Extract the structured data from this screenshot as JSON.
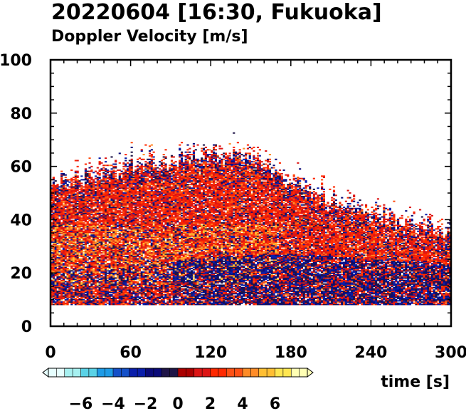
{
  "chart_data": {
    "type": "heatmap",
    "title": "20220604 [16:30, Fukuoka]",
    "subtitle": "Doppler Velocity [m/s]",
    "xlabel": "time [s]",
    "ylabel": "",
    "xlim": [
      0,
      300
    ],
    "ylim": [
      0,
      100
    ],
    "x_ticks": [
      0,
      60,
      120,
      180,
      240,
      300
    ],
    "y_ticks": [
      0,
      20,
      40,
      60,
      80,
      100
    ],
    "colorbar": {
      "range": [
        -8,
        8
      ],
      "ticks": [
        -6,
        -4,
        -2,
        0,
        2,
        4,
        6
      ],
      "tick_labels": [
        "−6",
        "−4",
        "−2",
        "0",
        "2",
        "4",
        "6"
      ],
      "extend": "both"
    },
    "data_min_height": 8,
    "echo_top_profile": [
      {
        "t": 0,
        "h": 52
      },
      {
        "t": 30,
        "h": 55
      },
      {
        "t": 60,
        "h": 58
      },
      {
        "t": 90,
        "h": 60
      },
      {
        "t": 120,
        "h": 62
      },
      {
        "t": 150,
        "h": 62
      },
      {
        "t": 180,
        "h": 52
      },
      {
        "t": 210,
        "h": 45
      },
      {
        "t": 240,
        "h": 40
      },
      {
        "t": 270,
        "h": 36
      },
      {
        "t": 300,
        "h": 32
      }
    ],
    "negative_velocity_band": [
      {
        "t": 0,
        "h": 13
      },
      {
        "t": 60,
        "h": 15
      },
      {
        "t": 120,
        "h": 19
      },
      {
        "t": 180,
        "h": 20
      },
      {
        "t": 240,
        "h": 18
      },
      {
        "t": 300,
        "h": 16
      }
    ],
    "colors": {
      "negative": [
        "#e6ffff",
        "#a6f0f0",
        "#5ad2e6",
        "#1e9be6",
        "#1450c8",
        "#0a1eaa",
        "#0a0a78",
        "#1e1446"
      ],
      "positive": [
        "#aa0000",
        "#dc1414",
        "#ff2800",
        "#ff5014",
        "#ff8c28",
        "#ffbe32",
        "#ffe650",
        "#ffffb4"
      ]
    }
  }
}
